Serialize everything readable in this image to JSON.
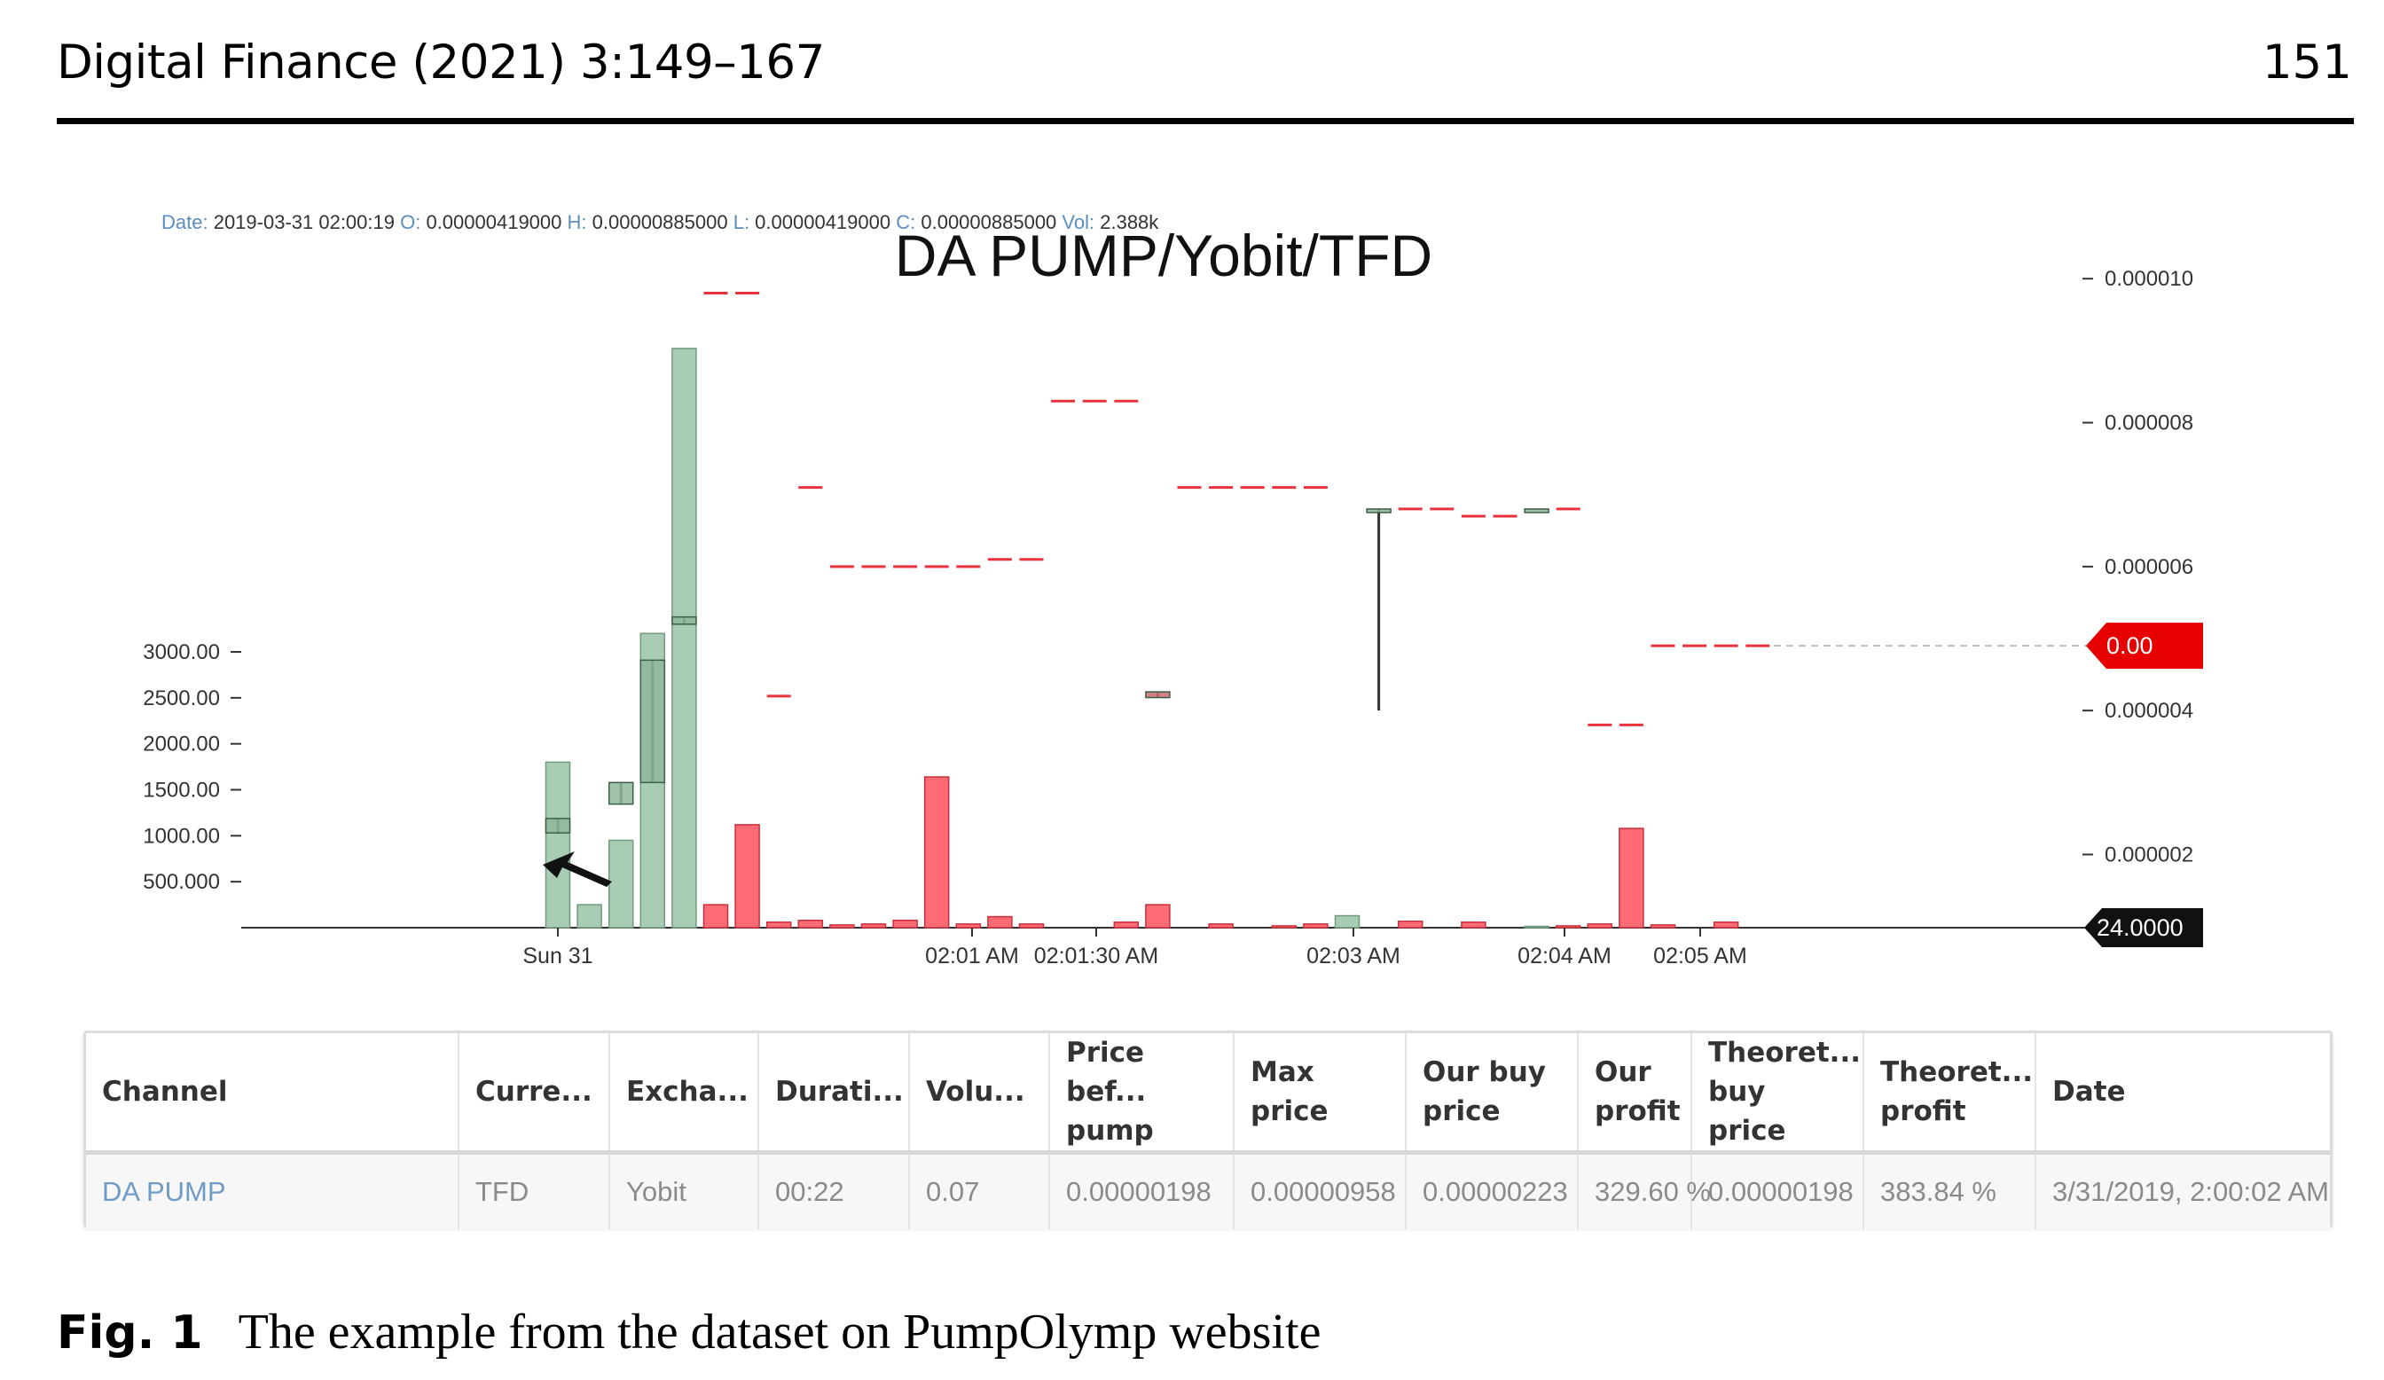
{
  "header": {
    "journal": "Digital Finance (2021) 3:149–167",
    "page_number": "151"
  },
  "chart_data": {
    "type": "candlestick",
    "title": "DA PUMP/Yobit/TFD",
    "info_bar": [
      {
        "k": "Date:",
        "v": "2019-03-31 02:00:19"
      },
      {
        "k": "O:",
        "v": "0.00000419000"
      },
      {
        "k": "H:",
        "v": "0.00000885000"
      },
      {
        "k": "L:",
        "v": "0.00000419000"
      },
      {
        "k": "C:",
        "v": "0.00000885000"
      },
      {
        "k": "Vol:",
        "v": "2.388k"
      }
    ],
    "x_ticks": [
      "Sun 31",
      "02:01 AM",
      "02:01:30 AM",
      "02:03 AM",
      "02:04 AM",
      "02:05 AM"
    ],
    "price_axis_ticks": [
      "0.000010",
      "0.000008",
      "0.000006",
      "0.000004",
      "0.000002"
    ],
    "price_axis_range": [
      1.55e-06,
      1.02e-05
    ],
    "volume_axis_ticks": [
      "3000.00",
      "2500.00",
      "2000.00",
      "1500.00",
      "1000.00",
      "500.000"
    ],
    "volume_axis_range": [
      0,
      3300
    ],
    "current_price_label": "0.00",
    "current_volume_label": "24.0000",
    "volume_bars": [
      {
        "i": 0,
        "v": 1800,
        "c": "green"
      },
      {
        "i": 1,
        "v": 250,
        "c": "green"
      },
      {
        "i": 2,
        "v": 950,
        "c": "green"
      },
      {
        "i": 3,
        "v": 3200,
        "c": "green"
      },
      {
        "i": 4,
        "v": 6300,
        "c": "green"
      },
      {
        "i": 5,
        "v": 250,
        "c": "red"
      },
      {
        "i": 6,
        "v": 1120,
        "c": "red"
      },
      {
        "i": 7,
        "v": 60,
        "c": "red"
      },
      {
        "i": 8,
        "v": 80,
        "c": "red"
      },
      {
        "i": 9,
        "v": 30,
        "c": "red"
      },
      {
        "i": 10,
        "v": 40,
        "c": "red"
      },
      {
        "i": 11,
        "v": 80,
        "c": "red"
      },
      {
        "i": 12,
        "v": 1640,
        "c": "red"
      },
      {
        "i": 13,
        "v": 40,
        "c": "red"
      },
      {
        "i": 14,
        "v": 120,
        "c": "red"
      },
      {
        "i": 15,
        "v": 40,
        "c": "red"
      },
      {
        "i": 18,
        "v": 60,
        "c": "red"
      },
      {
        "i": 19,
        "v": 250,
        "c": "red"
      },
      {
        "i": 21,
        "v": 40,
        "c": "red"
      },
      {
        "i": 23,
        "v": 20,
        "c": "red"
      },
      {
        "i": 24,
        "v": 40,
        "c": "red"
      },
      {
        "i": 25,
        "v": 130,
        "c": "green"
      },
      {
        "i": 27,
        "v": 70,
        "c": "red"
      },
      {
        "i": 29,
        "v": 60,
        "c": "red"
      },
      {
        "i": 31,
        "v": 15,
        "c": "green"
      },
      {
        "i": 32,
        "v": 20,
        "c": "red"
      },
      {
        "i": 33,
        "v": 40,
        "c": "red"
      },
      {
        "i": 34,
        "v": 1080,
        "c": "red"
      },
      {
        "i": 35,
        "v": 30,
        "c": "red"
      },
      {
        "i": 37,
        "v": 60,
        "c": "red"
      }
    ],
    "candles": [
      {
        "i": 0,
        "o": 2.3e-06,
        "c": 2.5e-06,
        "h": 2.5e-06,
        "l": 2.3e-06
      },
      {
        "i": 2,
        "o": 2.7e-06,
        "c": 3e-06,
        "h": 3e-06,
        "l": 2.7e-06
      },
      {
        "i": 3,
        "o": 3e-06,
        "c": 4.7e-06,
        "h": 4.7e-06,
        "l": 3e-06
      },
      {
        "i": 4,
        "o": 5.2e-06,
        "c": 5.3e-06,
        "h": 5.3e-06,
        "l": 5.2e-06
      },
      {
        "i": 19,
        "o": 4.26e-06,
        "c": 4.18e-06,
        "h": 4.26e-06,
        "l": 4.18e-06
      },
      {
        "i": 26,
        "o": 6.8e-06,
        "c": 6.8e-06,
        "h": 6.8e-06,
        "l": 4e-06
      },
      {
        "i": 31,
        "o": 6.8e-06,
        "c": 6.8e-06,
        "h": 6.8e-06,
        "l": 6.8e-06
      }
    ],
    "price_ticks": [
      {
        "i": 5,
        "p": 9.8e-06
      },
      {
        "i": 6,
        "p": 9.8e-06
      },
      {
        "i": 7,
        "p": 4.2e-06
      },
      {
        "i": 8,
        "p": 7.1e-06
      },
      {
        "i": 9,
        "p": 6e-06
      },
      {
        "i": 10,
        "p": 6e-06
      },
      {
        "i": 11,
        "p": 6e-06
      },
      {
        "i": 12,
        "p": 6e-06
      },
      {
        "i": 13,
        "p": 6e-06
      },
      {
        "i": 14,
        "p": 6.1e-06
      },
      {
        "i": 15,
        "p": 6.1e-06
      },
      {
        "i": 16,
        "p": 8.3e-06
      },
      {
        "i": 17,
        "p": 8.3e-06
      },
      {
        "i": 18,
        "p": 8.3e-06
      },
      {
        "i": 20,
        "p": 7.1e-06
      },
      {
        "i": 21,
        "p": 7.1e-06
      },
      {
        "i": 22,
        "p": 7.1e-06
      },
      {
        "i": 23,
        "p": 7.1e-06
      },
      {
        "i": 24,
        "p": 7.1e-06
      },
      {
        "i": 27,
        "p": 6.8e-06
      },
      {
        "i": 28,
        "p": 6.8e-06
      },
      {
        "i": 29,
        "p": 6.7e-06
      },
      {
        "i": 30,
        "p": 6.7e-06
      },
      {
        "i": 32,
        "p": 6.8e-06
      },
      {
        "i": 33,
        "p": 3.8e-06
      },
      {
        "i": 34,
        "p": 3.8e-06
      },
      {
        "i": 35,
        "p": 4.9e-06
      },
      {
        "i": 36,
        "p": 4.9e-06
      },
      {
        "i": 37,
        "p": 4.9e-06
      },
      {
        "i": 38,
        "p": 4.9e-06
      }
    ],
    "current_price_level": 4.9e-06
  },
  "table": {
    "columns": [
      "Channel",
      "Curre...",
      "Excha...",
      "Durati...",
      "Volu...",
      "Price bef... pump",
      "Max price",
      "Our buy price",
      "Our profit",
      "Theoret... buy price",
      "Theoret... profit",
      "Date"
    ],
    "rows": [
      [
        "DA PUMP",
        "TFD",
        "Yobit",
        "00:22",
        "0.07",
        "0.00000198",
        "0.00000958",
        "0.00000223",
        "329.60 %",
        "0.00000198",
        "383.84 %",
        "3/31/2019, 2:00:02 AM"
      ]
    ]
  },
  "caption": {
    "label": "Fig. 1",
    "text": "The example from the dataset on PumpOlymp website"
  },
  "colors": {
    "up": "#a9cdb4",
    "down": "#ff6b75",
    "price_tag": "#e60000",
    "info_key": "#5a8fc0"
  }
}
